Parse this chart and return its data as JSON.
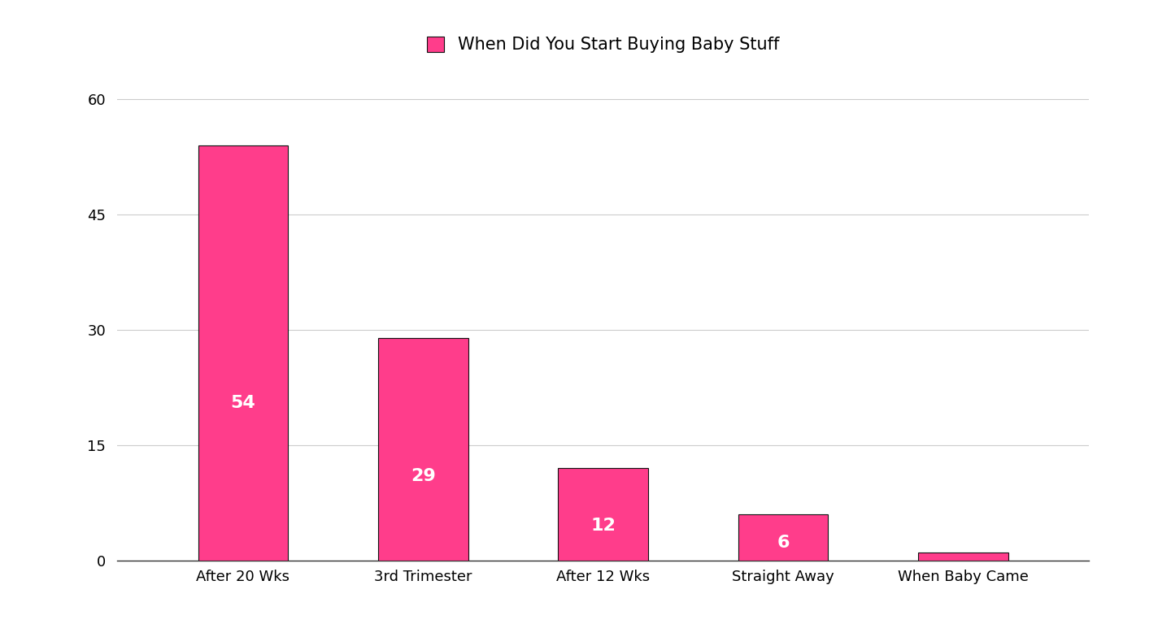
{
  "categories": [
    "After 20 Wks",
    "3rd Trimester",
    "After 12 Wks",
    "Straight Away",
    "When Baby Came"
  ],
  "values": [
    54,
    29,
    12,
    6,
    1
  ],
  "bar_color": "#FF3D8B",
  "bar_edge_color": "#111111",
  "label_color": "#FFFFFF",
  "legend_label": "When Did You Start Buying Baby Stuff",
  "ylim": [
    0,
    63
  ],
  "yticks": [
    0,
    15,
    30,
    45,
    60
  ],
  "grid_color": "#CCCCCC",
  "background_color": "#FFFFFF",
  "tick_fontsize": 13,
  "bar_label_fontsize": 16,
  "legend_fontsize": 15,
  "bar_width": 0.5
}
